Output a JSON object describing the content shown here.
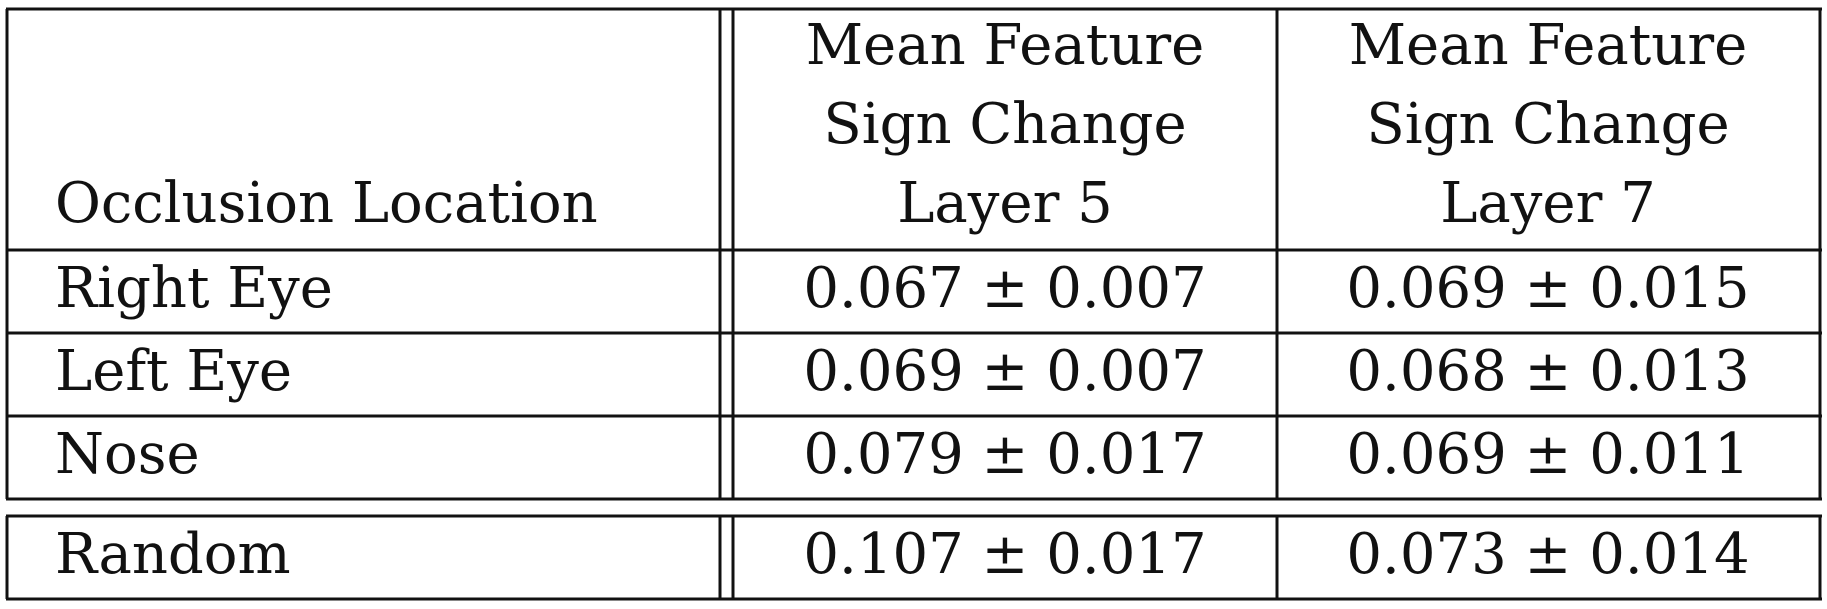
{
  "table": {
    "header": {
      "col1": "Occlusion Location",
      "col2": [
        "Mean Feature",
        "Sign Change",
        "Layer 5"
      ],
      "col3": [
        "Mean Feature",
        "Sign Change",
        "Layer 7"
      ]
    },
    "rows": [
      {
        "location": "Right Eye",
        "layer5": "0.067 ± 0.007",
        "layer7": "0.069 ± 0.015"
      },
      {
        "location": "Left Eye",
        "layer5": "0.069 ± 0.007",
        "layer7": "0.068 ± 0.013"
      },
      {
        "location": "Nose",
        "layer5": "0.079 ± 0.017",
        "layer7": "0.069 ± 0.011"
      }
    ],
    "random_row": {
      "location": "Random",
      "layer5": "0.107 ± 0.017",
      "layer7": "0.073 ± 0.014"
    }
  }
}
